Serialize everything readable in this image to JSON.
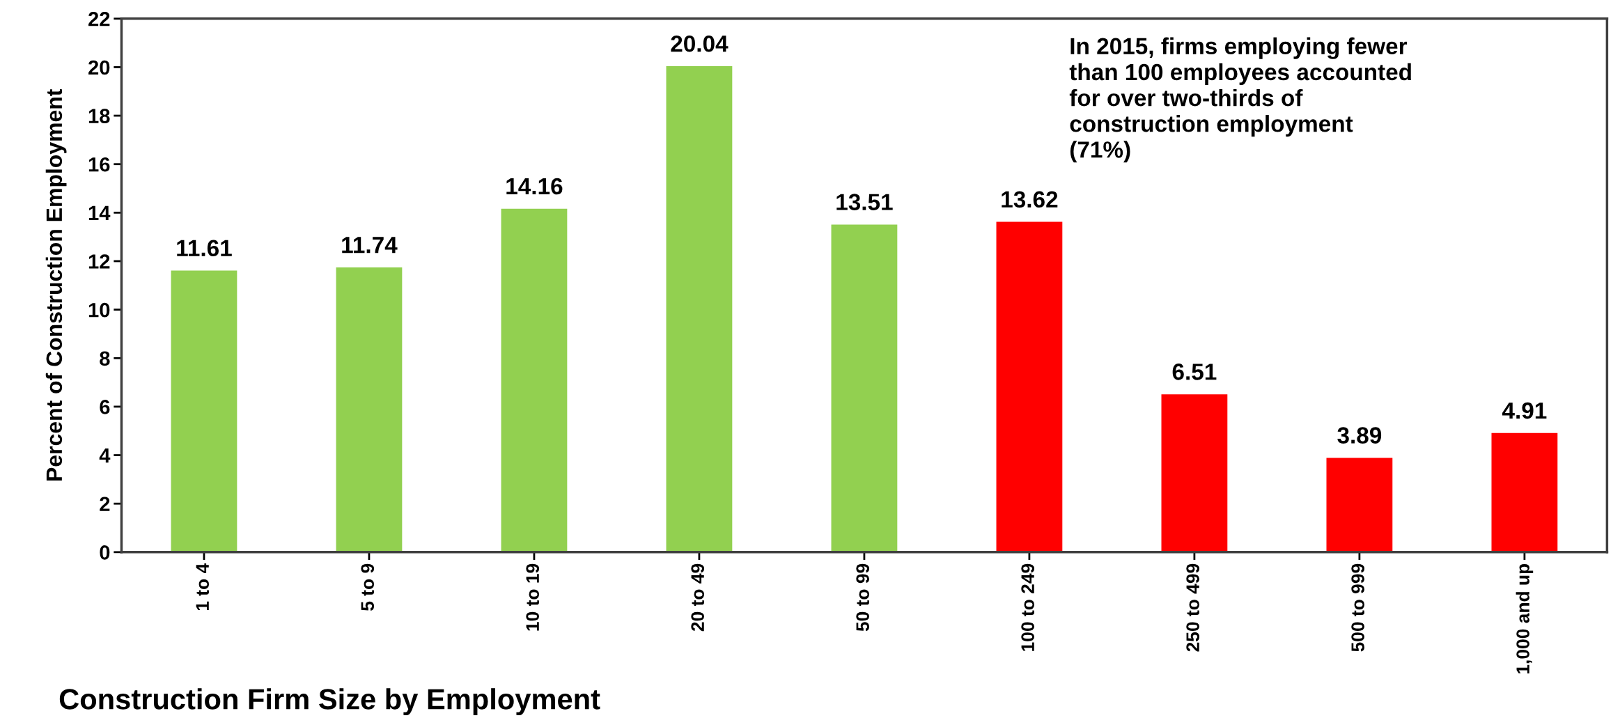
{
  "chart_data": {
    "type": "bar",
    "categories": [
      "1 to 4",
      "5 to 9",
      "10 to 19",
      "20 to 49",
      "50 to 99",
      "100 to 249",
      "250 to 499",
      "500 to 999",
      "1,000 and up"
    ],
    "values": [
      11.61,
      11.74,
      14.16,
      20.04,
      13.51,
      13.62,
      6.51,
      3.89,
      4.91
    ],
    "colors": [
      "#92d050",
      "#92d050",
      "#92d050",
      "#92d050",
      "#92d050",
      "#ff0000",
      "#ff0000",
      "#ff0000",
      "#ff0000"
    ],
    "xlabel": "Construction Firm Size by Employment",
    "ylabel": "Percent of Construction Employment",
    "ylim": [
      0,
      22
    ],
    "yticks": [
      0,
      2,
      4,
      6,
      8,
      10,
      12,
      14,
      16,
      18,
      20,
      22
    ],
    "grid": false,
    "legend": false,
    "data_labels": true,
    "annotations": [
      "In 2015, firms employing fewer\nthan 100 employees accounted\nfor over two-thirds of\nconstruction employment\n(71%)"
    ]
  }
}
